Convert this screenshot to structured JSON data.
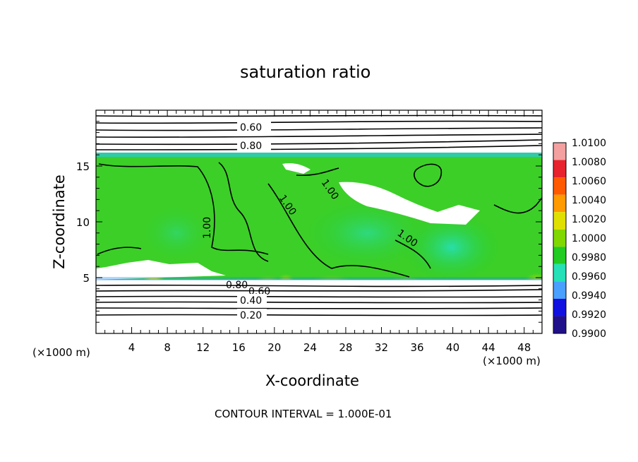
{
  "chart_data": {
    "type": "heatmap",
    "title": "saturation ratio",
    "xlabel": "X-coordinate",
    "ylabel": "Z-coordinate",
    "x_unit_left": "(×1000 m)",
    "x_unit_right": "(×1000 m)",
    "xlim": [
      0,
      50
    ],
    "ylim": [
      0,
      20
    ],
    "x_ticks": [
      4,
      8,
      12,
      16,
      20,
      24,
      28,
      32,
      36,
      40,
      44,
      48
    ],
    "y_ticks": [
      5,
      10,
      15
    ],
    "footer": "CONTOUR INTERVAL = 1.000E-01",
    "colorbar": {
      "levels": [
        "1.0100",
        "1.0080",
        "1.0060",
        "1.0040",
        "1.0020",
        "1.0000",
        "0.9980",
        "0.9960",
        "0.9940",
        "0.9920",
        "0.9900"
      ],
      "colors": [
        "#f4a0a0",
        "#e8232d",
        "#ff5a00",
        "#ff9a00",
        "#e0e000",
        "#80d800",
        "#22cc22",
        "#26e0b8",
        "#4aa0ff",
        "#1010e0",
        "#20108a"
      ]
    },
    "contour_labels": [
      "0.60",
      "0.80",
      "1.00",
      "1.00",
      "1.00",
      "1.00",
      "0.80",
      "0.60",
      "0.40",
      "0.20"
    ],
    "grid": false,
    "legend": "colorbar-right"
  }
}
